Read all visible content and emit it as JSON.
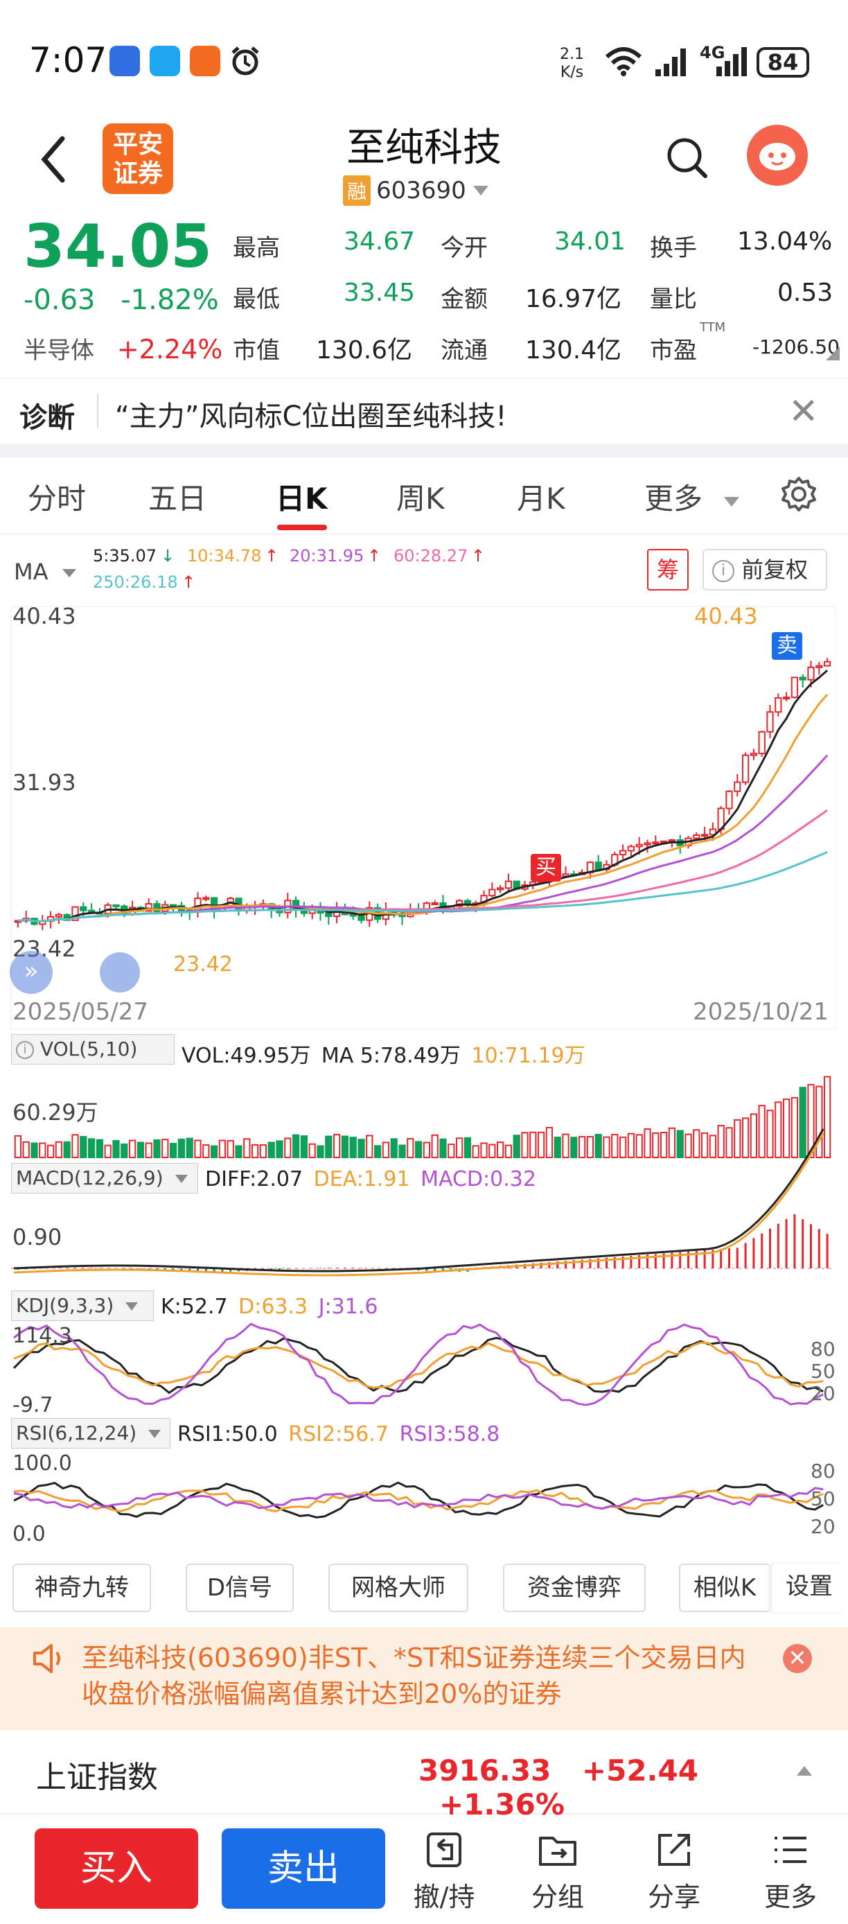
{
  "status": {
    "time": "7:07",
    "speed_top": "2.1",
    "speed_bottom": "K/s",
    "network": "4G",
    "battery": "84",
    "app_icon_label": "平安\n证券"
  },
  "header": {
    "stock_name": "至纯科技",
    "margin_badge": "融",
    "stock_code": "603690",
    "logo_text_1": "平安",
    "logo_text_2": "证券"
  },
  "quote": {
    "price": "34.05",
    "change": "-0.63",
    "change_pct": "-1.82%",
    "sector": "半导体",
    "sector_change": "+2.24%",
    "fields": [
      {
        "label": "最高",
        "value": "34.67",
        "color": "green"
      },
      {
        "label": "今开",
        "value": "34.01",
        "color": "green"
      },
      {
        "label": "换手",
        "value": "13.04%",
        "color": "black"
      },
      {
        "label": "最低",
        "value": "33.45",
        "color": "green"
      },
      {
        "label": "金额",
        "value": "16.97亿",
        "color": "black"
      },
      {
        "label": "量比",
        "value": "0.53",
        "color": "black"
      },
      {
        "label": "市值",
        "value": "130.6亿",
        "color": "black"
      },
      {
        "label": "流通",
        "value": "130.4亿",
        "color": "black"
      },
      {
        "label": "市盈",
        "value": "-1206.50",
        "color": "black"
      }
    ],
    "pe_suffix": "TTM"
  },
  "diagnosis": {
    "label": "诊断",
    "text": "“主力”风向标C位出圈至纯科技!"
  },
  "tabs": [
    "分时",
    "五日",
    "日K",
    "周K",
    "月K",
    "更多"
  ],
  "active_tab": "日K",
  "ma_legend": {
    "label": "MA",
    "ma5": "5:35.07",
    "ma10": "10:34.78",
    "ma20": "20:31.95",
    "ma60": "60:28.27",
    "ma250": "250:26.18",
    "chip_badge": "筹",
    "adjust": "前复权"
  },
  "kline": {
    "y_high": "40.43",
    "y_mid": "31.93",
    "y_low": "23.42",
    "max_label": "40.43",
    "min_label": "23.42",
    "buy_marker": "买",
    "sell_marker": "卖",
    "date_start": "2025/05/27",
    "date_end": "2025/10/21"
  },
  "vol": {
    "label": "VOL(5,10)",
    "vol": "VOL:49.95万",
    "ma5": "MA 5:78.49万",
    "ma10": "10:71.19万",
    "axis": "60.29万"
  },
  "macd": {
    "label": "MACD(12,26,9)",
    "diff": "DIFF:2.07",
    "dea": "DEA:1.91",
    "macd": "MACD:0.32",
    "axis": "0.90"
  },
  "kdj": {
    "label": "KDJ(9,3,3)",
    "k": "K:52.7",
    "d": "D:63.3",
    "j": "J:31.6",
    "top": "114.3",
    "bottom": "-9.7",
    "lvl80": "80",
    "lvl50": "50",
    "lvl20": "20"
  },
  "rsi": {
    "label": "RSI(6,12,24)",
    "rsi1": "RSI1:50.0",
    "rsi2": "RSI2:56.7",
    "rsi3": "RSI3:58.8",
    "top": "100.0",
    "bottom": "0.0",
    "lvl80": "80",
    "lvl50": "50",
    "lvl20": "20"
  },
  "strategies": [
    "神奇九转",
    "D信号",
    "网格大师",
    "资金博弈",
    "相似K",
    "设置"
  ],
  "notice": {
    "text": "至纯科技(603690)非ST、*ST和S证券连续三个交易日内收盘价格涨幅偏离值累计达到20%的证券"
  },
  "index": {
    "name": "上证指数",
    "value": "3916.33",
    "change": "+52.44",
    "pct": "+1.36%"
  },
  "bottom_bar": {
    "buy": "买入",
    "sell": "卖出",
    "withdraw": "撤/持",
    "group": "分组",
    "share": "分享",
    "more": "更多"
  },
  "colors": {
    "up": "#e8262c",
    "down": "#0fa15a",
    "ma5": "#222222",
    "ma10": "#f0a030",
    "ma20": "#b552d4",
    "ma60": "#f06aa6",
    "ma250": "#55c3c9",
    "accent": "#1a6ee8"
  }
}
